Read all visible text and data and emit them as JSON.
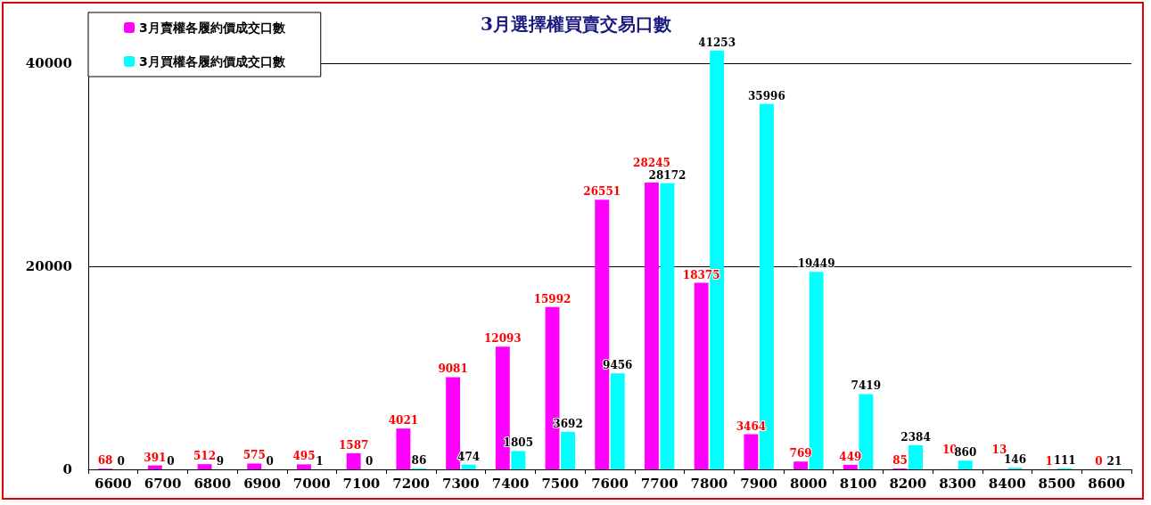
{
  "chart_data": {
    "type": "bar",
    "title": "3月選擇權買賣交易口數",
    "categories": [
      "6600",
      "6700",
      "6800",
      "6900",
      "7000",
      "7100",
      "7200",
      "7300",
      "7400",
      "7500",
      "7600",
      "7700",
      "7800",
      "7900",
      "8000",
      "8100",
      "8200",
      "8300",
      "8400",
      "8500",
      "8600"
    ],
    "series": [
      {
        "name": "3月賣權各履約價成交口數",
        "color": "#ff00ff",
        "values": [
          68,
          391,
          512,
          575,
          495,
          1587,
          4021,
          9081,
          12093,
          15992,
          26551,
          28245,
          18375,
          3464,
          769,
          449,
          85,
          10,
          13,
          1,
          0
        ]
      },
      {
        "name": "3月買權各履約價成交口數",
        "color": "#00ffff",
        "values": [
          0,
          0,
          9,
          0,
          1,
          0,
          86,
          474,
          1805,
          3692,
          9456,
          28172,
          41253,
          35996,
          19449,
          7419,
          2384,
          860,
          146,
          111,
          21
        ]
      }
    ],
    "ylim": [
      0,
      45000
    ],
    "yticks": [
      0,
      20000,
      40000
    ],
    "grid": "y",
    "legend": "top left",
    "data_labels": true
  }
}
